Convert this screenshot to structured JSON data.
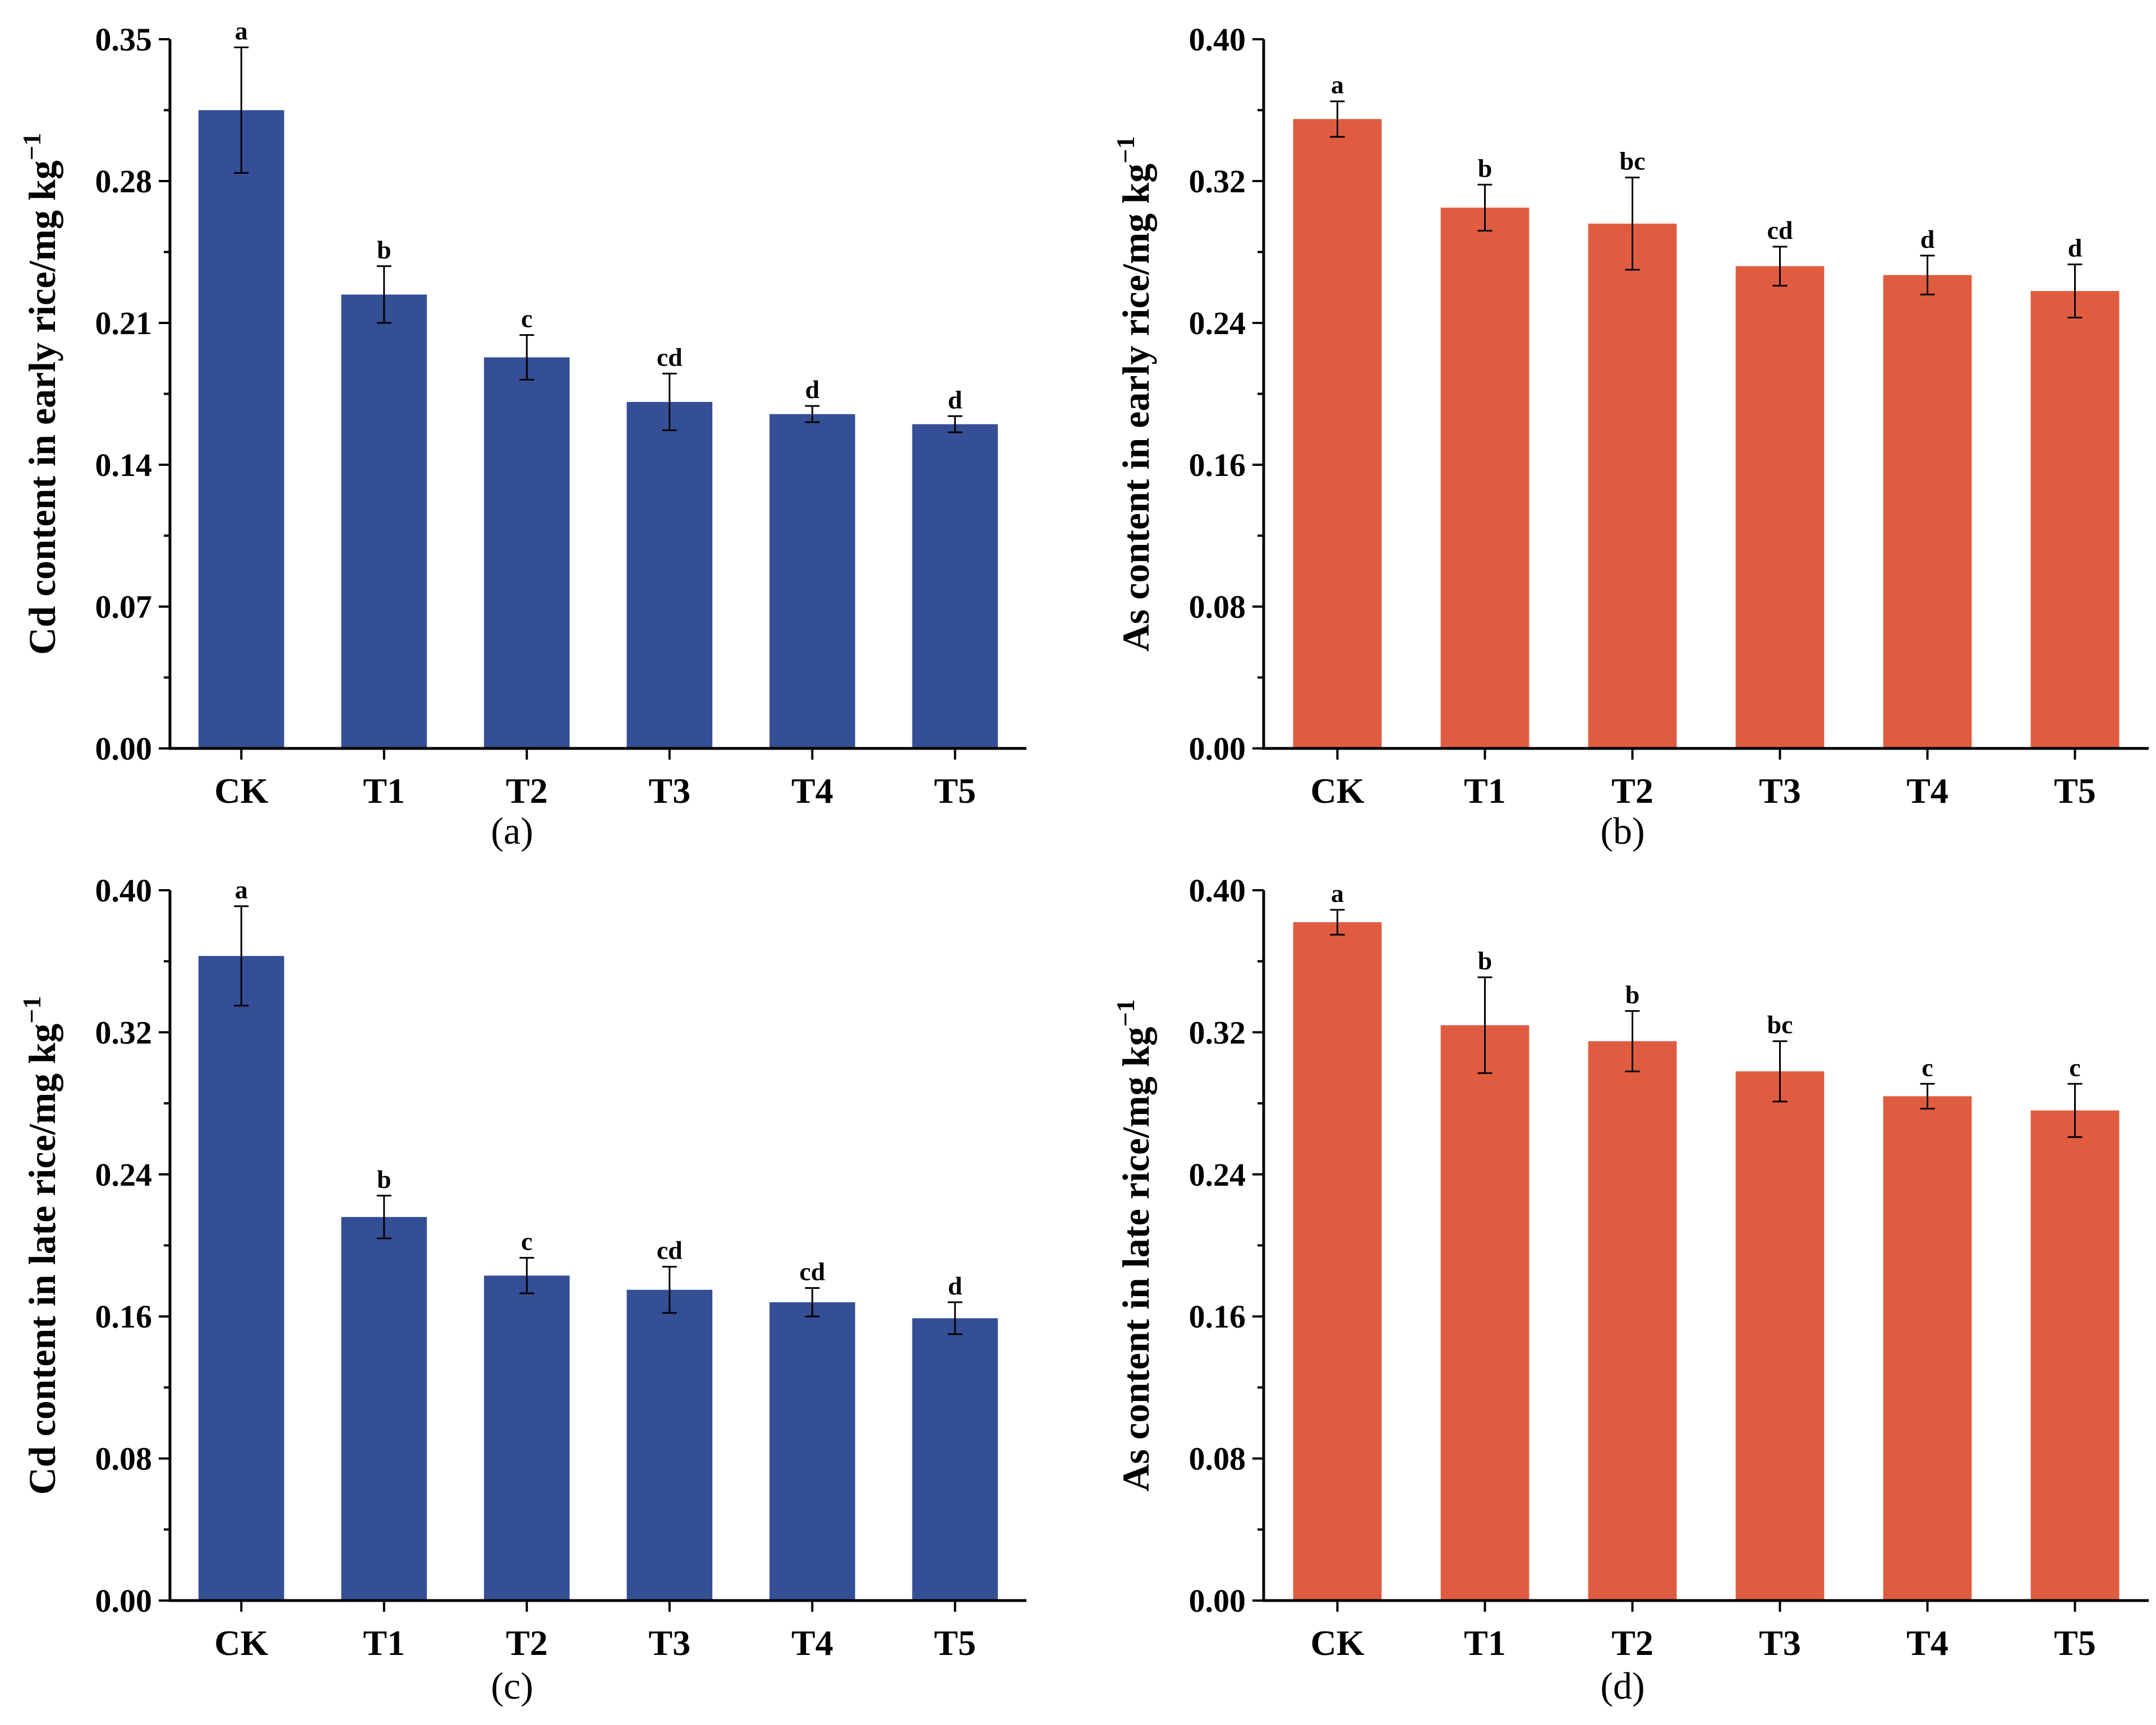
{
  "chart_data": [
    {
      "type": "bar",
      "panel_label": "(a)",
      "ylabel": "Cd content in early rice/mg kg",
      "ylabel_superscript": "−1",
      "categories": [
        "CK",
        "T1",
        "T2",
        "T3",
        "T4",
        "T5"
      ],
      "values": [
        0.315,
        0.224,
        0.193,
        0.171,
        0.165,
        0.16
      ],
      "errors": [
        0.031,
        0.014,
        0.011,
        0.014,
        0.004,
        0.004
      ],
      "significance": [
        "a",
        "b",
        "c",
        "cd",
        "d",
        "d"
      ],
      "ylim": [
        0,
        0.35
      ],
      "yticks": [
        "0.00",
        "0.07",
        "0.14",
        "0.21",
        "0.28",
        "0.35"
      ],
      "bar_color": "#354F96"
    },
    {
      "type": "bar",
      "panel_label": "(b)",
      "ylabel": "As content in early rice/mg kg",
      "ylabel_superscript": "−1",
      "categories": [
        "CK",
        "T1",
        "T2",
        "T3",
        "T4",
        "T5"
      ],
      "values": [
        0.355,
        0.305,
        0.296,
        0.272,
        0.267,
        0.258
      ],
      "errors": [
        0.01,
        0.013,
        0.026,
        0.011,
        0.011,
        0.015
      ],
      "significance": [
        "a",
        "b",
        "bc",
        "cd",
        "d",
        "d"
      ],
      "ylim": [
        0,
        0.4
      ],
      "yticks": [
        "0.00",
        "0.08",
        "0.16",
        "0.24",
        "0.32",
        "0.40"
      ],
      "bar_color": "#E05C40"
    },
    {
      "type": "bar",
      "panel_label": "(c)",
      "ylabel": "Cd content in late rice/mg kg",
      "ylabel_superscript": "−1",
      "categories": [
        "CK",
        "T1",
        "T2",
        "T3",
        "T4",
        "T5"
      ],
      "values": [
        0.363,
        0.216,
        0.183,
        0.175,
        0.168,
        0.159
      ],
      "errors": [
        0.028,
        0.012,
        0.01,
        0.013,
        0.008,
        0.009
      ],
      "significance": [
        "a",
        "b",
        "c",
        "cd",
        "cd",
        "d"
      ],
      "ylim": [
        0,
        0.4
      ],
      "yticks": [
        "0.00",
        "0.08",
        "0.16",
        "0.24",
        "0.32",
        "0.40"
      ],
      "bar_color": "#354F96"
    },
    {
      "type": "bar",
      "panel_label": "(d)",
      "ylabel": "As content in late rice/mg kg",
      "ylabel_superscript": "−1",
      "categories": [
        "CK",
        "T1",
        "T2",
        "T3",
        "T4",
        "T5"
      ],
      "values": [
        0.382,
        0.324,
        0.315,
        0.298,
        0.284,
        0.276
      ],
      "errors": [
        0.007,
        0.027,
        0.017,
        0.017,
        0.007,
        0.015
      ],
      "significance": [
        "a",
        "b",
        "b",
        "bc",
        "c",
        "c"
      ],
      "ylim": [
        0,
        0.4
      ],
      "yticks": [
        "0.00",
        "0.08",
        "0.16",
        "0.24",
        "0.32",
        "0.40"
      ],
      "bar_color": "#E05C40"
    }
  ]
}
